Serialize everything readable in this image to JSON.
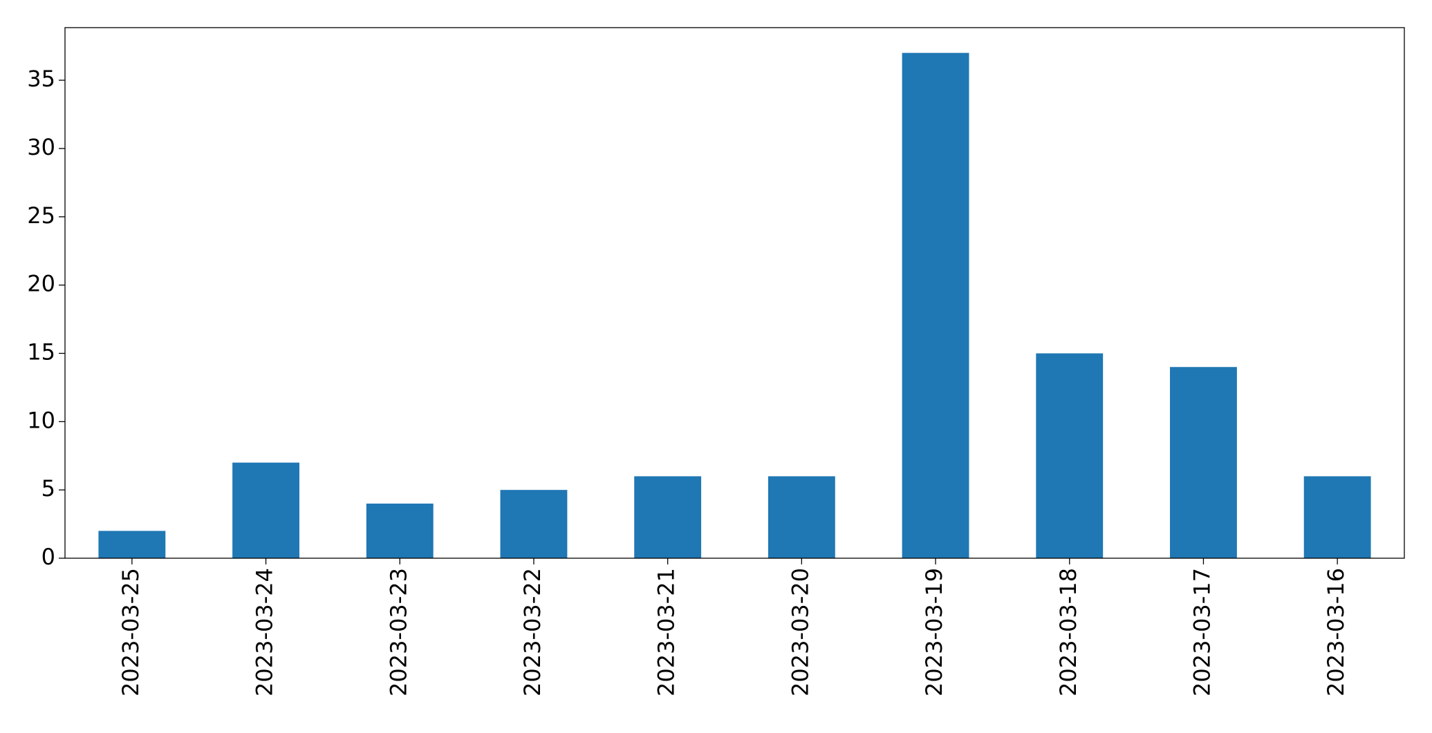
{
  "chart_data": {
    "type": "bar",
    "categories": [
      "2023-03-25",
      "2023-03-24",
      "2023-03-23",
      "2023-03-22",
      "2023-03-21",
      "2023-03-20",
      "2023-03-19",
      "2023-03-18",
      "2023-03-17",
      "2023-03-16"
    ],
    "values": [
      2,
      7,
      4,
      5,
      6,
      6,
      37,
      15,
      14,
      6
    ],
    "color": "#1f77b4",
    "ylim": [
      0,
      38.85
    ],
    "yticks": [
      0,
      5,
      10,
      15,
      20,
      25,
      30,
      35
    ],
    "grid": false
  }
}
